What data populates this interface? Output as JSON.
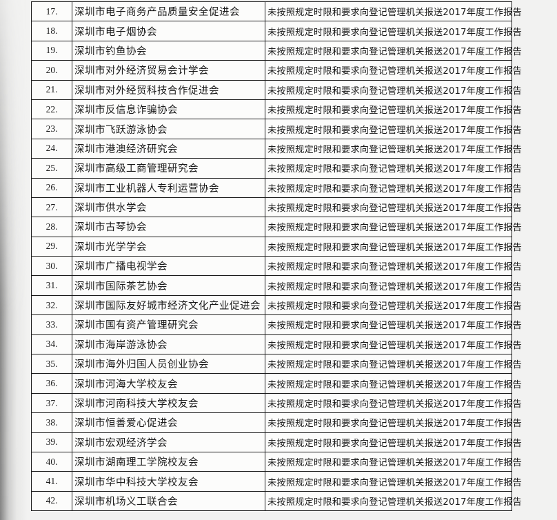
{
  "document": {
    "kind": "scanned-annual-report-violation-table",
    "colors": {
      "page_background": "#f2f2f1",
      "cell_background": "#fcfcfb",
      "border": "#1b1b1b",
      "text": "#1a1a1a"
    },
    "table": {
      "rows": [
        {
          "num": "17.",
          "name": "深圳市电子商务产品质量安全促进会",
          "reason": "未按照规定时限和要求向登记管理机关报送2017年度工作报告"
        },
        {
          "num": "18.",
          "name": "深圳市电子烟协会",
          "reason": "未按照规定时限和要求向登记管理机关报送2017年度工作报告"
        },
        {
          "num": "19.",
          "name": "深圳市钓鱼协会",
          "reason": "未按照规定时限和要求向登记管理机关报送2017年度工作报告"
        },
        {
          "num": "20.",
          "name": "深圳市对外经济贸易会计学会",
          "reason": "未按照规定时限和要求向登记管理机关报送2017年度工作报告"
        },
        {
          "num": "21.",
          "name": "深圳市对外经贸科技合作促进会",
          "reason": "未按照规定时限和要求向登记管理机关报送2017年度工作报告"
        },
        {
          "num": "22.",
          "name": "深圳市反信息诈骗协会",
          "reason": "未按照规定时限和要求向登记管理机关报送2017年度工作报告"
        },
        {
          "num": "23.",
          "name": "深圳市飞跃游泳协会",
          "reason": "未按照规定时限和要求向登记管理机关报送2017年度工作报告"
        },
        {
          "num": "24.",
          "name": "深圳市港澳经济研究会",
          "reason": "未按照规定时限和要求向登记管理机关报送2017年度工作报告"
        },
        {
          "num": "25.",
          "name": "深圳市高级工商管理研究会",
          "reason": "未按照规定时限和要求向登记管理机关报送2017年度工作报告"
        },
        {
          "num": "26.",
          "name": "深圳市工业机器人专利运营协会",
          "reason": "未按照规定时限和要求向登记管理机关报送2017年度工作报告"
        },
        {
          "num": "27.",
          "name": "深圳市供水学会",
          "reason": "未按照规定时限和要求向登记管理机关报送2017年度工作报告"
        },
        {
          "num": "28.",
          "name": "深圳市古琴协会",
          "reason": "未按照规定时限和要求向登记管理机关报送2017年度工作报告"
        },
        {
          "num": "29.",
          "name": "深圳市光学学会",
          "reason": "未按照规定时限和要求向登记管理机关报送2017年度工作报告"
        },
        {
          "num": "30.",
          "name": "深圳市广播电视学会",
          "reason": "未按照规定时限和要求向登记管理机关报送2017年度工作报告"
        },
        {
          "num": "31.",
          "name": "深圳市国际茶艺协会",
          "reason": "未按照规定时限和要求向登记管理机关报送2017年度工作报告"
        },
        {
          "num": "32.",
          "name": "深圳市国际友好城市经济文化产业促进会",
          "reason": "未按照规定时限和要求向登记管理机关报送2017年度工作报告"
        },
        {
          "num": "33.",
          "name": "深圳市国有资产管理研究会",
          "reason": "未按照规定时限和要求向登记管理机关报送2017年度工作报告"
        },
        {
          "num": "34.",
          "name": "深圳市海岸游泳协会",
          "reason": "未按照规定时限和要求向登记管理机关报送2017年度工作报告"
        },
        {
          "num": "35.",
          "name": "深圳市海外归国人员创业协会",
          "reason": "未按照规定时限和要求向登记管理机关报送2017年度工作报告"
        },
        {
          "num": "36.",
          "name": "深圳市河海大学校友会",
          "reason": "未按照规定时限和要求向登记管理机关报送2017年度工作报告"
        },
        {
          "num": "37.",
          "name": "深圳市河南科技大学校友会",
          "reason": "未按照规定时限和要求向登记管理机关报送2017年度工作报告"
        },
        {
          "num": "38.",
          "name": "深圳市恒善爱心促进会",
          "reason": "未按照规定时限和要求向登记管理机关报送2017年度工作报告"
        },
        {
          "num": "39.",
          "name": "深圳市宏观经济学会",
          "reason": "未按照规定时限和要求向登记管理机关报送2017年度工作报告"
        },
        {
          "num": "40.",
          "name": "深圳市湖南理工学院校友会",
          "reason": "未按照规定时限和要求向登记管理机关报送2017年度工作报告"
        },
        {
          "num": "41.",
          "name": "深圳市华中科技大学校友会",
          "reason": "未按照规定时限和要求向登记管理机关报送2017年度工作报告"
        },
        {
          "num": "42.",
          "name": "深圳市机场义工联合会",
          "reason": "未按照规定时限和要求向登记管理机关报送2017年度工作报告"
        }
      ]
    }
  }
}
